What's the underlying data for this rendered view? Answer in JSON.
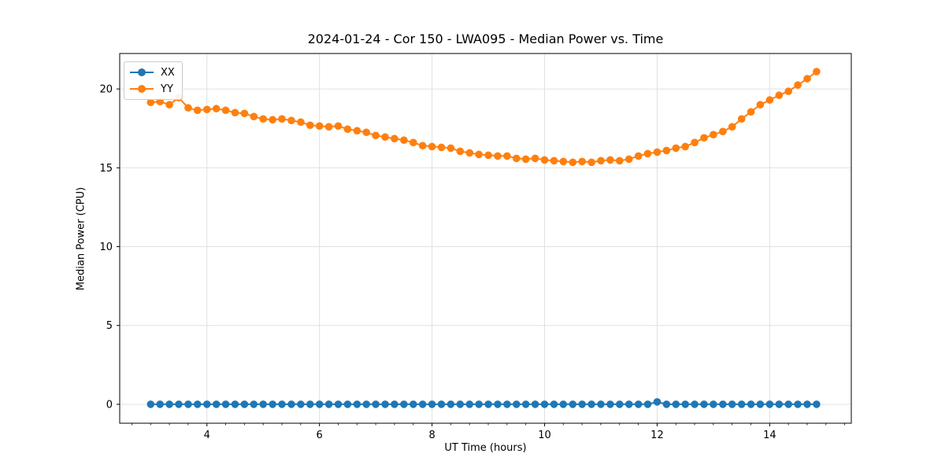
{
  "chart_data": {
    "type": "line",
    "title": "2024-01-24 - Cor 150 - LWA095 - Median Power vs. Time",
    "xlabel": "UT Time (hours)",
    "ylabel": "Median Power (CPU)",
    "xlim": [
      2.45,
      15.45
    ],
    "ylim": [
      -1.2,
      22.25
    ],
    "xticks": [
      4,
      6,
      8,
      10,
      12,
      14
    ],
    "yticks": [
      0,
      5,
      10,
      15,
      20
    ],
    "x_minor_tick_step": 0.3333,
    "grid": true,
    "grid_color": "#e0e0e0",
    "legend_position": "upper-left",
    "x": [
      3.0,
      3.167,
      3.333,
      3.5,
      3.667,
      3.833,
      4.0,
      4.167,
      4.333,
      4.5,
      4.667,
      4.833,
      5.0,
      5.167,
      5.333,
      5.5,
      5.667,
      5.833,
      6.0,
      6.167,
      6.333,
      6.5,
      6.667,
      6.833,
      7.0,
      7.167,
      7.333,
      7.5,
      7.667,
      7.833,
      8.0,
      8.167,
      8.333,
      8.5,
      8.667,
      8.833,
      9.0,
      9.167,
      9.333,
      9.5,
      9.667,
      9.833,
      10.0,
      10.167,
      10.333,
      10.5,
      10.667,
      10.833,
      11.0,
      11.167,
      11.333,
      11.5,
      11.667,
      11.833,
      12.0,
      12.167,
      12.333,
      12.5,
      12.667,
      12.833,
      13.0,
      13.167,
      13.333,
      13.5,
      13.667,
      13.833,
      14.0,
      14.167,
      14.333,
      14.5,
      14.667,
      14.833
    ],
    "series": [
      {
        "name": "XX",
        "color": "#1f77b4",
        "values": [
          0,
          0,
          0,
          0,
          0,
          0,
          0,
          0,
          0,
          0,
          0,
          0,
          0,
          0,
          0,
          0,
          0,
          0,
          0,
          0,
          0,
          0,
          0,
          0,
          0,
          0,
          0,
          0,
          0,
          0,
          0,
          0,
          0,
          0,
          0,
          0,
          0,
          0,
          0,
          0,
          0,
          0,
          0,
          0,
          0,
          0,
          0,
          0,
          0,
          0,
          0,
          0,
          0,
          0,
          0.15,
          0,
          0,
          0,
          0,
          0,
          0,
          0,
          0,
          0,
          0,
          0,
          0,
          0,
          0,
          0,
          0,
          0
        ]
      },
      {
        "name": "YY",
        "color": "#ff7f0e",
        "values": [
          19.15,
          19.2,
          19.0,
          19.45,
          18.8,
          18.65,
          18.7,
          18.75,
          18.65,
          18.5,
          18.45,
          18.25,
          18.1,
          18.05,
          18.1,
          18.0,
          17.9,
          17.7,
          17.65,
          17.6,
          17.65,
          17.45,
          17.35,
          17.25,
          17.05,
          16.95,
          16.85,
          16.75,
          16.6,
          16.4,
          16.35,
          16.3,
          16.25,
          16.05,
          15.95,
          15.85,
          15.8,
          15.75,
          15.75,
          15.6,
          15.55,
          15.6,
          15.5,
          15.45,
          15.4,
          15.35,
          15.4,
          15.35,
          15.45,
          15.5,
          15.45,
          15.55,
          15.75,
          15.9,
          16.0,
          16.1,
          16.25,
          16.35,
          16.6,
          16.9,
          17.1,
          17.3,
          17.6,
          18.1,
          18.55,
          19.0,
          19.3,
          19.6,
          19.85,
          20.25,
          20.65,
          21.1
        ]
      }
    ]
  }
}
